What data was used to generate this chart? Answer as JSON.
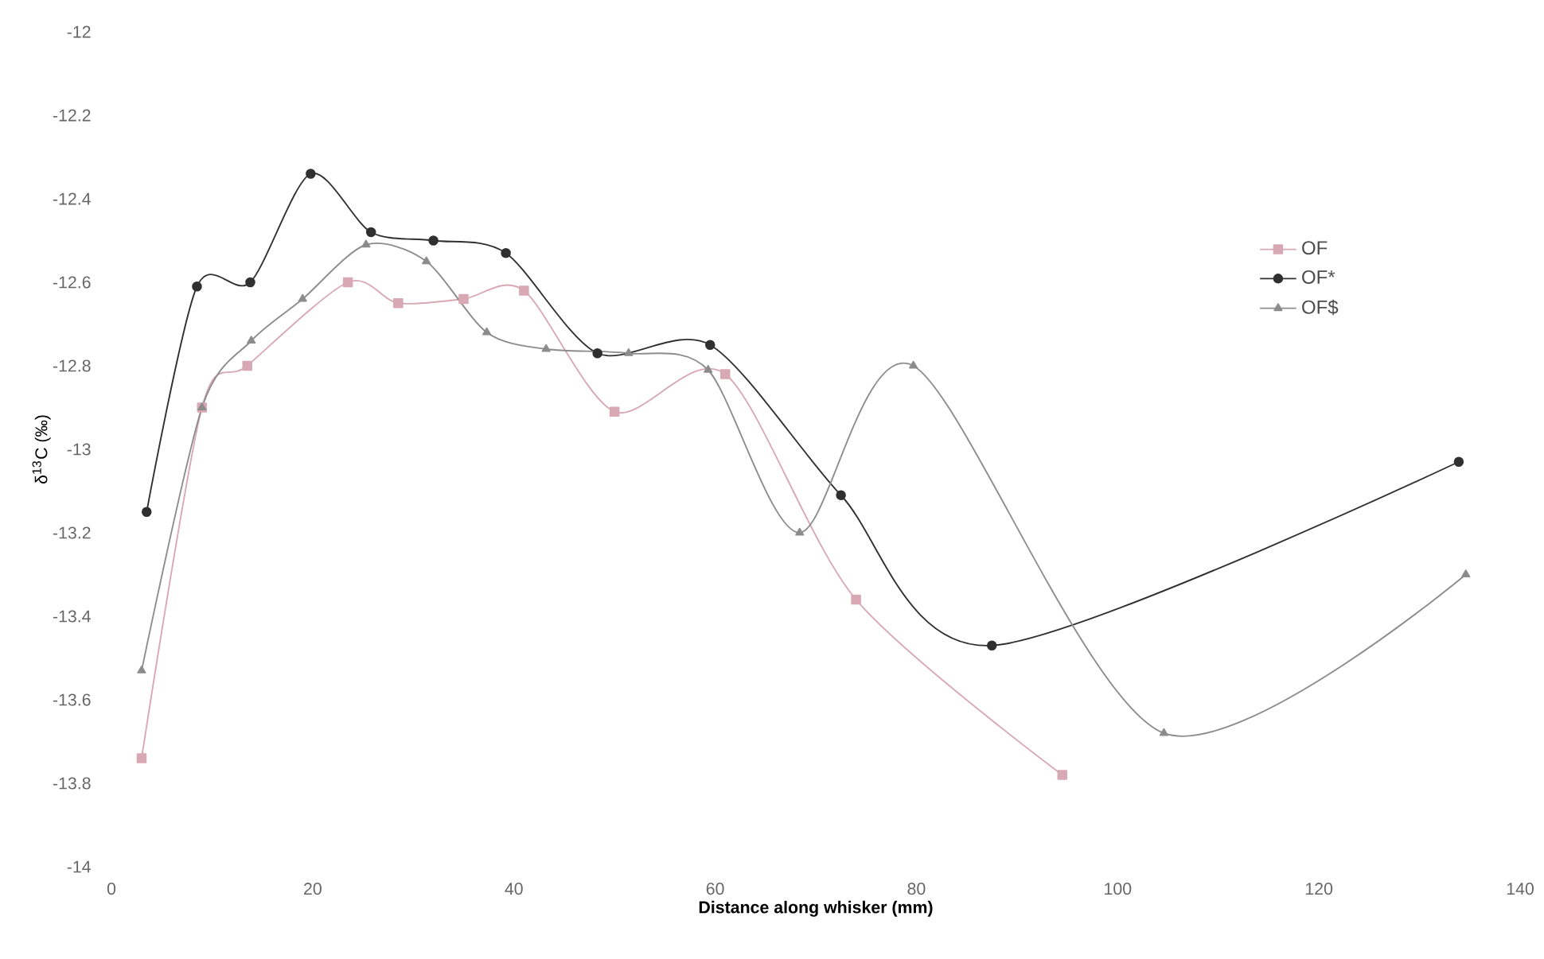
{
  "chart_data": {
    "type": "line",
    "xlabel": "**Distance along whisker (mm)**",
    "ylabel": "δ$^{13}$C (‰)",
    "xlim": [
      0,
      140
    ],
    "xticks": [
      0,
      20,
      40,
      60,
      80,
      100,
      120,
      140
    ],
    "ylim": [
      -14,
      -12
    ],
    "yticks": [
      -14,
      -13.8,
      -13.6,
      -13.4,
      -13.2,
      -13,
      -12.8,
      -12.6,
      -12.4,
      -12.2,
      -12
    ],
    "legend": "right",
    "grid": false,
    "series": [
      {
        "name": "OF",
        "color": "#d8a8b4",
        "marker": "square",
        "x": [
          3,
          9,
          13.5,
          23.5,
          28.5,
          35,
          41,
          50,
          61,
          74,
          94.5
        ],
        "values": [
          -13.74,
          -12.9,
          -12.8,
          -12.6,
          -12.65,
          -12.64,
          -12.62,
          -12.91,
          -12.82,
          -13.36,
          -13.78
        ]
      },
      {
        "name": "OF*",
        "color": "#303030",
        "marker": "circle",
        "x": [
          3.5,
          8.5,
          13.8,
          19.8,
          25.8,
          32,
          39.2,
          48.3,
          59.5,
          72.5,
          87.5,
          133.9
        ],
        "values": [
          -13.15,
          -12.61,
          -12.6,
          -12.34,
          -12.48,
          -12.5,
          -12.53,
          -12.77,
          -12.75,
          -13.11,
          -13.47,
          -13.03
        ]
      },
      {
        "name": "OF$",
        "color": "#8c8c8c",
        "marker": "triangle",
        "x": [
          3,
          9,
          13.9,
          19,
          25.3,
          31.3,
          37.3,
          43.2,
          51.4,
          59.3,
          68.4,
          79.7,
          104.6,
          134.6
        ],
        "values": [
          -13.53,
          -12.9,
          -12.74,
          -12.64,
          -12.51,
          -12.55,
          -12.72,
          -12.76,
          -12.77,
          -12.81,
          -13.2,
          -12.8,
          -13.68,
          -13.3
        ]
      }
    ]
  }
}
